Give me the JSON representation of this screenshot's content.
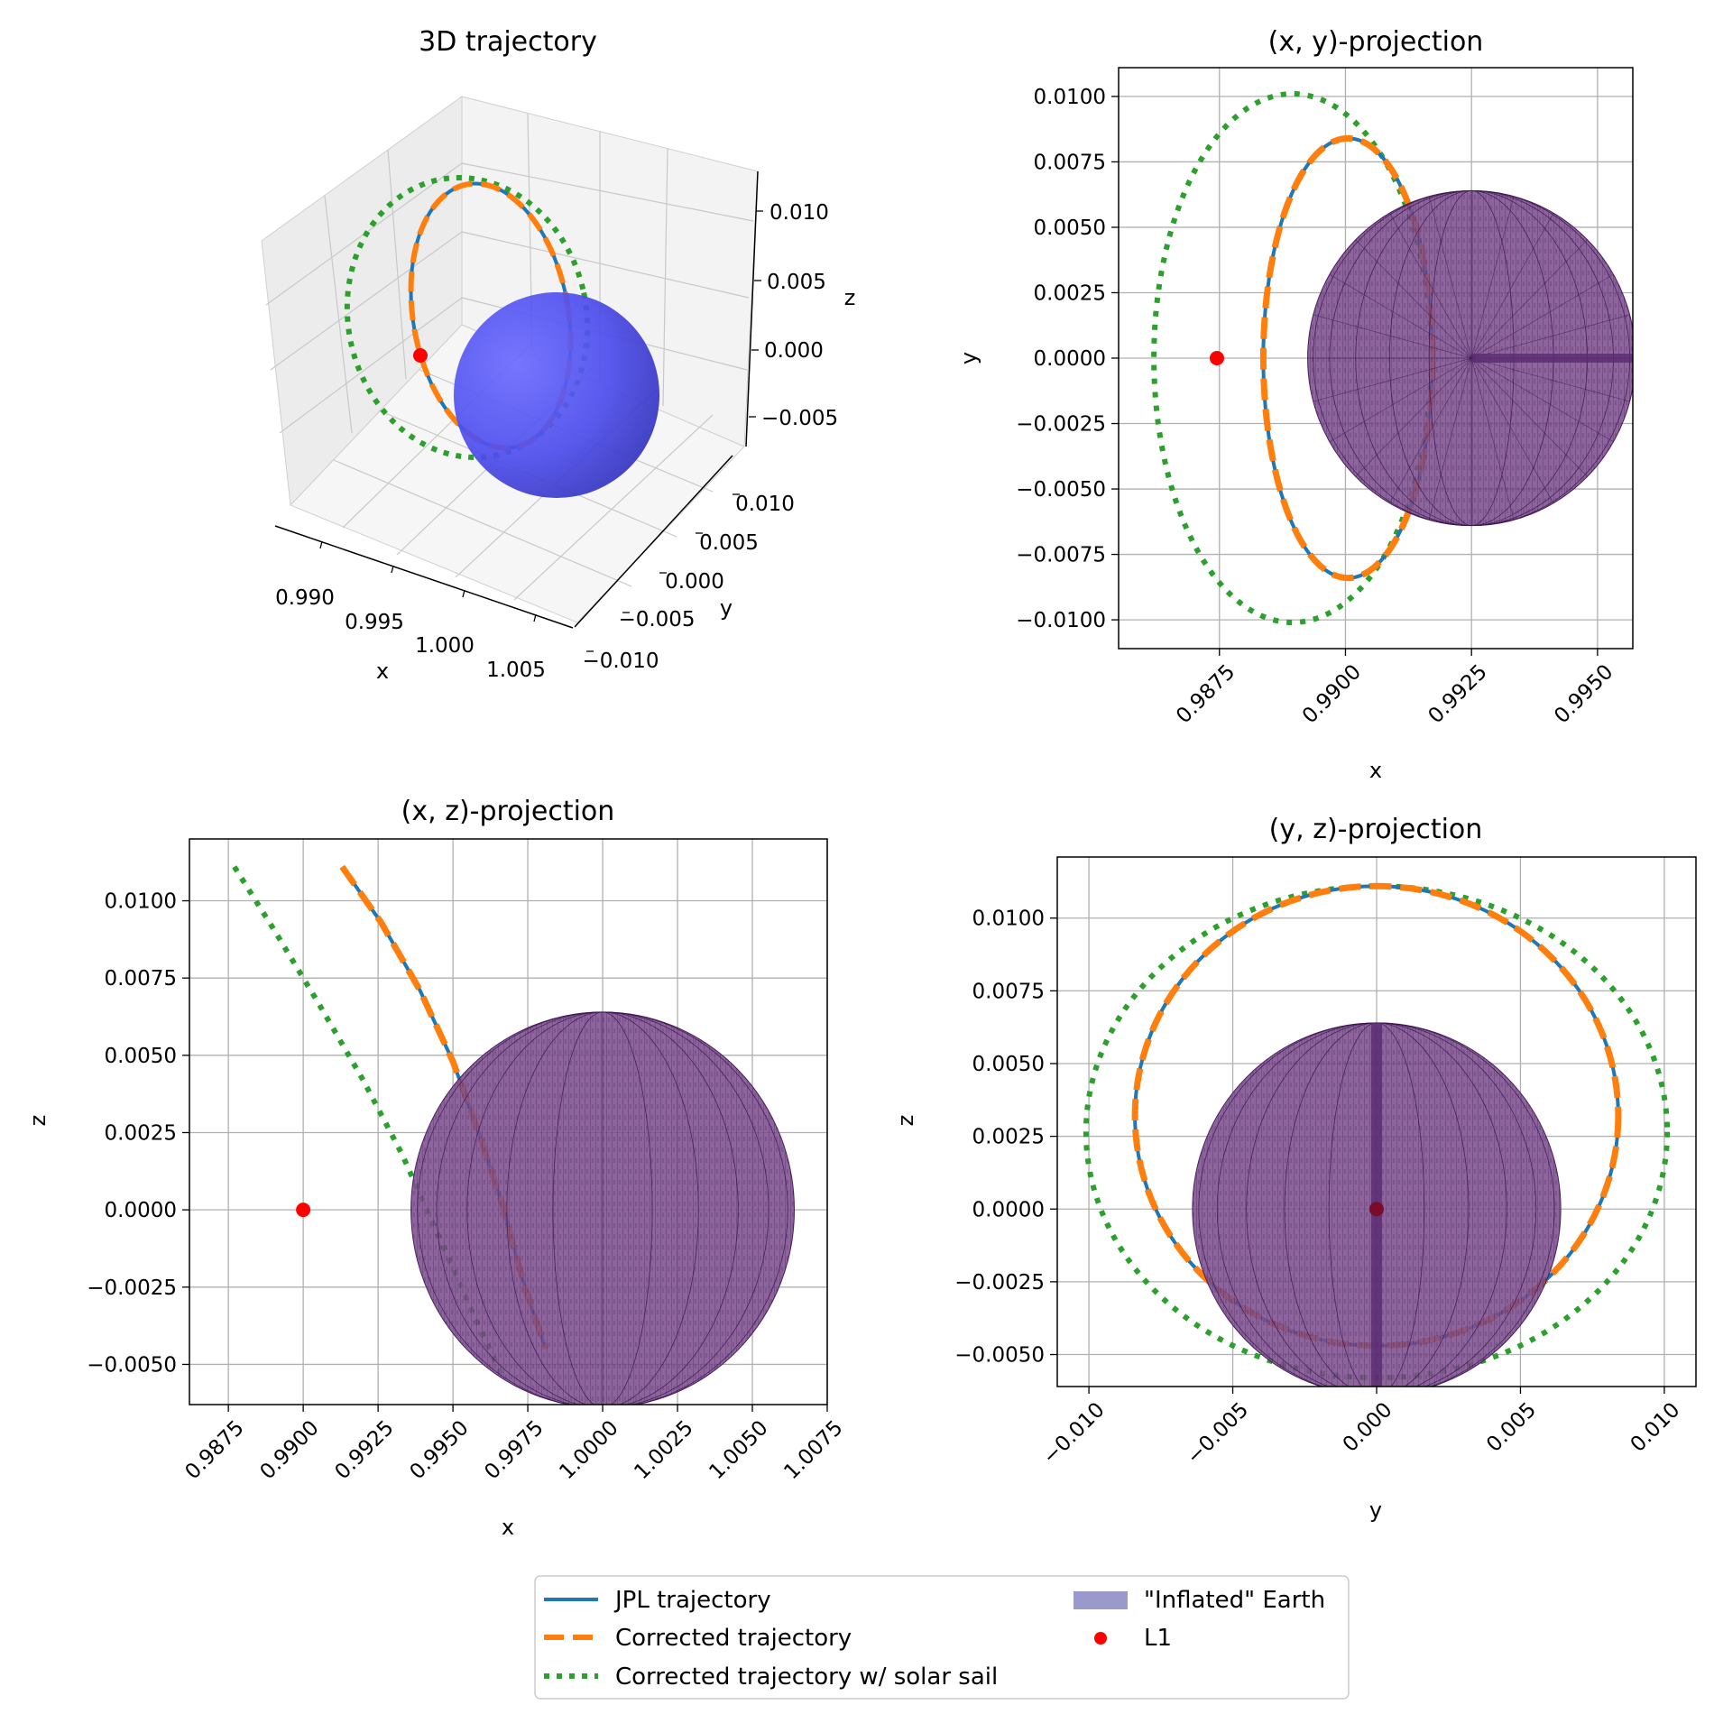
{
  "figure": {
    "legend": {
      "placement": "bottom-center",
      "entries": [
        {
          "label": "JPL trajectory",
          "color": "#1f77b4",
          "style": "solid"
        },
        {
          "label": "Corrected trajectory",
          "color": "#ff7f0e",
          "style": "dashed"
        },
        {
          "label": "Corrected trajectory w/ solar sail",
          "color": "#2ca02c",
          "style": "dotted"
        },
        {
          "label": "\"Inflated\" Earth",
          "color": "#9999cc",
          "style": "patch"
        },
        {
          "label": "L1",
          "color": "#ff0000",
          "style": "marker"
        }
      ]
    }
  },
  "chart_data": [
    {
      "id": "3d",
      "type": "line",
      "title": "3D trajectory",
      "xlabel": "x",
      "ylabel": "y",
      "zlabel": "z",
      "x_ticks": [
        "0.990",
        "0.995",
        "1.000",
        "1.005"
      ],
      "y_ticks": [
        "0.010",
        "0.005",
        "0.000",
        "−0.005",
        "−0.010"
      ],
      "z_ticks": [
        "0.010",
        "0.005",
        "0.000",
        "−0.005"
      ],
      "sphere_color": "#4444ff",
      "grid": true
    },
    {
      "id": "xy",
      "type": "line",
      "title": "(x, y)-projection",
      "xlabel": "x",
      "ylabel": "y",
      "xlim": [
        0.9855,
        0.9957
      ],
      "ylim": [
        -0.0111,
        0.0111
      ],
      "x_ticks": [
        0.9875,
        0.99,
        0.9925,
        0.995
      ],
      "x_tick_labels": [
        "0.9875",
        "0.9900",
        "0.9925",
        "0.9950"
      ],
      "y_ticks": [
        0.01,
        0.0075,
        0.005,
        0.0025,
        0,
        -0.0025,
        -0.005,
        -0.0075,
        -0.01
      ],
      "y_tick_labels": [
        "0.0100",
        "0.0075",
        "0.0050",
        "0.0025",
        "0.0000",
        "−0.0025",
        "−0.0050",
        "−0.0075",
        "−0.0100"
      ],
      "series": [
        {
          "label": "JPL trajectory",
          "shape": "ellipse",
          "cx": 0.99005,
          "cy": 0,
          "rx": 0.00168,
          "ry": 0.0084
        },
        {
          "label": "Corrected trajectory",
          "shape": "ellipse",
          "cx": 0.99005,
          "cy": 0,
          "rx": 0.00168,
          "ry": 0.0084
        },
        {
          "label": "Corrected trajectory w/ solar sail",
          "shape": "ellipse",
          "cx": 0.98895,
          "cy": 0,
          "rx": 0.00275,
          "ry": 0.0101
        }
      ],
      "earth": {
        "cx": 0.9925,
        "cy": 0,
        "rx": 0.00325,
        "ry": 0.0064
      },
      "l1": {
        "x": 0.98745,
        "y": 0
      },
      "grid": true
    },
    {
      "id": "xz",
      "type": "line",
      "title": "(x, z)-projection",
      "xlabel": "x",
      "ylabel": "z",
      "xlim": [
        0.9862,
        1.0075
      ],
      "ylim": [
        -0.0063,
        0.012
      ],
      "x_ticks": [
        0.9875,
        0.99,
        0.9925,
        0.995,
        0.9975,
        1.0,
        1.0025,
        1.005,
        1.0075
      ],
      "x_tick_labels": [
        "0.9875",
        "0.9900",
        "0.9925",
        "0.9950",
        "0.9975",
        "1.0000",
        "1.0025",
        "1.0050",
        "1.0075"
      ],
      "y_ticks": [
        0.01,
        0.0075,
        0.005,
        0.0025,
        0,
        -0.0025,
        -0.005
      ],
      "y_tick_labels": [
        "0.0100",
        "0.0075",
        "0.0050",
        "0.0025",
        "0.0000",
        "−0.0025",
        "−0.0050"
      ],
      "series": [
        {
          "label": "JPL trajectory",
          "points": [
            [
              0.9913,
              0.0111
            ],
            [
              0.9926,
              0.0093
            ],
            [
              0.9939,
              0.0071
            ],
            [
              0.995,
              0.0048
            ],
            [
              0.9959,
              0.0024
            ],
            [
              0.9967,
              0.0
            ],
            [
              0.9974,
              -0.0025
            ],
            [
              0.9981,
              -0.0045
            ]
          ]
        },
        {
          "label": "Corrected trajectory",
          "points": [
            [
              0.9913,
              0.0111
            ],
            [
              0.9926,
              0.0093
            ],
            [
              0.9939,
              0.0071
            ],
            [
              0.995,
              0.0048
            ],
            [
              0.9959,
              0.0024
            ],
            [
              0.9967,
              0.0
            ],
            [
              0.9974,
              -0.0025
            ],
            [
              0.9981,
              -0.0045
            ]
          ]
        },
        {
          "label": "Corrected trajectory w/ solar sail",
          "points": [
            [
              0.9877,
              0.0111
            ],
            [
              0.989,
              0.0091
            ],
            [
              0.9905,
              0.0067
            ],
            [
              0.992,
              0.0042
            ],
            [
              0.9933,
              0.0018
            ],
            [
              0.9945,
              -0.0008
            ],
            [
              0.9956,
              -0.0032
            ],
            [
              0.9967,
              -0.0055
            ]
          ]
        }
      ],
      "earth": {
        "cx": 1.0,
        "cy": 0,
        "rx": 0.0064,
        "ry": 0.0064
      },
      "l1": {
        "x": 0.99,
        "y": 0
      },
      "grid": true
    },
    {
      "id": "yz",
      "type": "line",
      "title": "(y, z)-projection",
      "xlabel": "y",
      "ylabel": "z",
      "xlim": [
        -0.0111,
        0.0111
      ],
      "ylim": [
        -0.0061,
        0.0121
      ],
      "x_ticks": [
        -0.01,
        -0.005,
        0,
        0.005,
        0.01
      ],
      "x_tick_labels": [
        "−0.010",
        "−0.005",
        "0.000",
        "0.005",
        "0.010"
      ],
      "y_ticks": [
        0.01,
        0.0075,
        0.005,
        0.0025,
        0,
        -0.0025,
        -0.005
      ],
      "y_tick_labels": [
        "0.0100",
        "0.0075",
        "0.0050",
        "0.0025",
        "0.0000",
        "−0.0025",
        "−0.0050"
      ],
      "series": [
        {
          "label": "JPL trajectory",
          "shape": "ellipse",
          "cx": 0,
          "cy": 0.0032,
          "rx": 0.0084,
          "ry": 0.0079
        },
        {
          "label": "Corrected trajectory",
          "shape": "ellipse",
          "cx": 0,
          "cy": 0.0032,
          "rx": 0.0084,
          "ry": 0.0079
        },
        {
          "label": "Corrected trajectory w/ solar sail",
          "shape": "ellipse",
          "cx": 0,
          "cy": 0.00265,
          "rx": 0.0101,
          "ry": 0.00845
        }
      ],
      "earth": {
        "cx": 0,
        "cy": 0,
        "rx": 0.0064,
        "ry": 0.0064
      },
      "l1": {
        "x": 0,
        "y": 0
      },
      "grid": true
    }
  ]
}
